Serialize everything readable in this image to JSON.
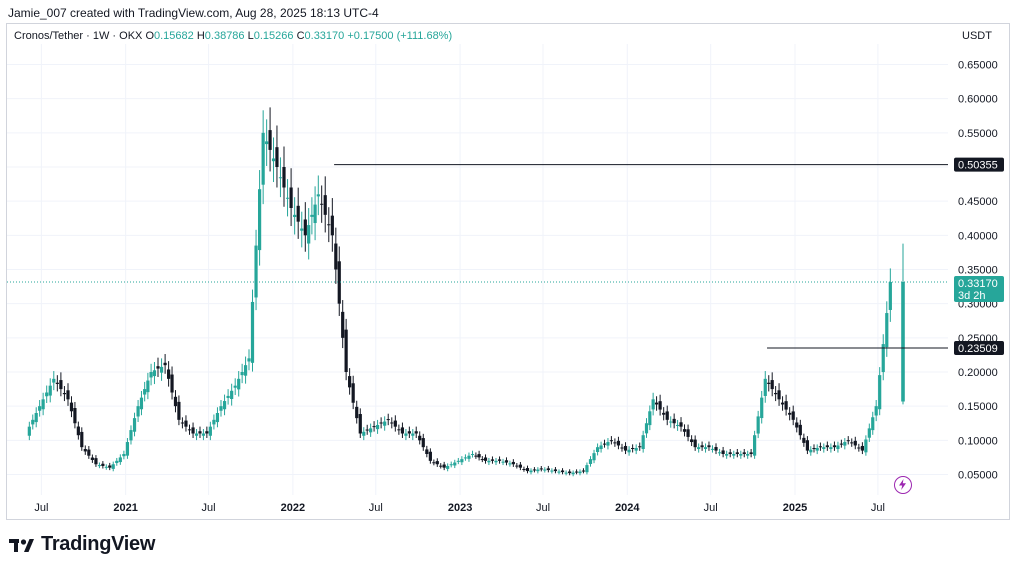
{
  "header": {
    "credit": "Jamie_007 created with TradingView.com, Aug 28, 2025 18:13 UTC-4"
  },
  "legend": {
    "symbol": "Cronos/Tether · 1W · OKX",
    "o_label": "O",
    "o_value": "0.15682",
    "h_label": "H",
    "h_value": "0.38786",
    "l_label": "L",
    "l_value": "0.15266",
    "c_label": "C",
    "c_value": "0.33170",
    "change": "+0.17500 (+111.68%)"
  },
  "unit": "USDT",
  "brand": {
    "name": "TradingView",
    "icon": "tradingview-logo-icon"
  },
  "colors": {
    "up": "#26a69a",
    "down": "#131722",
    "grid": "#f0f3fa",
    "label_bg": "#131722"
  },
  "chart_data": {
    "type": "candlestick",
    "title": "Cronos/Tether · 1W · OKX",
    "ylim": [
      0.02,
      0.68
    ],
    "y_scale": "linear",
    "y_ticks": [
      0.05,
      0.1,
      0.15,
      0.2,
      0.25,
      0.3,
      0.35,
      0.4,
      0.45,
      0.5,
      0.55,
      0.6,
      0.65
    ],
    "y_tick_labels": [
      "0.05000",
      "0.10000",
      "0.15000",
      "0.20000",
      "0.25000",
      "0.30000",
      "0.35000",
      "0.40000",
      "0.45000",
      "0.50000",
      "0.55000",
      "0.60000",
      "0.65000"
    ],
    "x_ticks": [
      {
        "label": "Jul",
        "date": "2020-07"
      },
      {
        "label": "2021",
        "date": "2021-01"
      },
      {
        "label": "Jul",
        "date": "2021-07"
      },
      {
        "label": "2022",
        "date": "2022-01"
      },
      {
        "label": "Jul",
        "date": "2022-07"
      },
      {
        "label": "2023",
        "date": "2023-01"
      },
      {
        "label": "Jul",
        "date": "2023-07"
      },
      {
        "label": "2024",
        "date": "2024-01"
      },
      {
        "label": "Jul",
        "date": "2024-07"
      },
      {
        "label": "2025",
        "date": "2025-01"
      },
      {
        "label": "Jul",
        "date": "2025-07"
      }
    ],
    "grid": true,
    "close_price_series": [
      {
        "date": "2020-06",
        "close": 0.11
      },
      {
        "date": "2020-07",
        "close": 0.15
      },
      {
        "date": "2020-08",
        "close": 0.19
      },
      {
        "date": "2020-09",
        "close": 0.16
      },
      {
        "date": "2020-10",
        "close": 0.09
      },
      {
        "date": "2020-11",
        "close": 0.065
      },
      {
        "date": "2020-12",
        "close": 0.06
      },
      {
        "date": "2021-01",
        "close": 0.08
      },
      {
        "date": "2021-02",
        "close": 0.15
      },
      {
        "date": "2021-03",
        "close": 0.2
      },
      {
        "date": "2021-04",
        "close": 0.21
      },
      {
        "date": "2021-05",
        "close": 0.13
      },
      {
        "date": "2021-06",
        "close": 0.11
      },
      {
        "date": "2021-07",
        "close": 0.11
      },
      {
        "date": "2021-08",
        "close": 0.15
      },
      {
        "date": "2021-09",
        "close": 0.18
      },
      {
        "date": "2021-10",
        "close": 0.22
      },
      {
        "date": "2021-11",
        "close": 0.55
      },
      {
        "date": "2021-12",
        "close": 0.5
      },
      {
        "date": "2022-01",
        "close": 0.44
      },
      {
        "date": "2022-02",
        "close": 0.4
      },
      {
        "date": "2022-03",
        "close": 0.46
      },
      {
        "date": "2022-04",
        "close": 0.4
      },
      {
        "date": "2022-05",
        "close": 0.2
      },
      {
        "date": "2022-06",
        "close": 0.11
      },
      {
        "date": "2022-07",
        "close": 0.12
      },
      {
        "date": "2022-08",
        "close": 0.13
      },
      {
        "date": "2022-09",
        "close": 0.11
      },
      {
        "date": "2022-10",
        "close": 0.11
      },
      {
        "date": "2022-11",
        "close": 0.07
      },
      {
        "date": "2022-12",
        "close": 0.06
      },
      {
        "date": "2023-01",
        "close": 0.07
      },
      {
        "date": "2023-02",
        "close": 0.08
      },
      {
        "date": "2023-03",
        "close": 0.07
      },
      {
        "date": "2023-04",
        "close": 0.07
      },
      {
        "date": "2023-05",
        "close": 0.065
      },
      {
        "date": "2023-06",
        "close": 0.055
      },
      {
        "date": "2023-07",
        "close": 0.058
      },
      {
        "date": "2023-08",
        "close": 0.055
      },
      {
        "date": "2023-09",
        "close": 0.052
      },
      {
        "date": "2023-10",
        "close": 0.055
      },
      {
        "date": "2023-11",
        "close": 0.09
      },
      {
        "date": "2023-12",
        "close": 0.1
      },
      {
        "date": "2024-01",
        "close": 0.085
      },
      {
        "date": "2024-02",
        "close": 0.09
      },
      {
        "date": "2024-03",
        "close": 0.16
      },
      {
        "date": "2024-04",
        "close": 0.13
      },
      {
        "date": "2024-05",
        "close": 0.12
      },
      {
        "date": "2024-06",
        "close": 0.09
      },
      {
        "date": "2024-07",
        "close": 0.09
      },
      {
        "date": "2024-08",
        "close": 0.08
      },
      {
        "date": "2024-09",
        "close": 0.08
      },
      {
        "date": "2024-10",
        "close": 0.08
      },
      {
        "date": "2024-11",
        "close": 0.19
      },
      {
        "date": "2024-12",
        "close": 0.16
      },
      {
        "date": "2025-01",
        "close": 0.13
      },
      {
        "date": "2025-02",
        "close": 0.085
      },
      {
        "date": "2025-03",
        "close": 0.09
      },
      {
        "date": "2025-04",
        "close": 0.09
      },
      {
        "date": "2025-05",
        "close": 0.1
      },
      {
        "date": "2025-06",
        "close": 0.085
      },
      {
        "date": "2025-07",
        "close": 0.15
      },
      {
        "date": "2025-08",
        "close": 0.3317
      }
    ],
    "last_bar": {
      "date": "2025-08",
      "open": 0.15682,
      "high": 0.38786,
      "low": 0.15266,
      "close": 0.3317
    },
    "horizontal_lines": [
      {
        "value": 0.50355,
        "label": "0.50355",
        "from_date": "2022-04"
      },
      {
        "value": 0.23509,
        "label": "0.23509",
        "from_date": "2024-11"
      }
    ],
    "price_label": {
      "value": 0.3317,
      "label": "0.33170",
      "countdown": "3d 2h"
    }
  }
}
